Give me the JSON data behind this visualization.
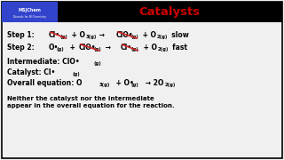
{
  "title": "Catalysts",
  "title_color": "#cc0000",
  "bg_color": "#f0f0f0",
  "border_color": "#000000",
  "logo_text1": "MSJChem",
  "logo_text2": "Tutorials for IB Chemistry",
  "logo_bg": "#3344cc",
  "strike_color": "#cc2222",
  "footer": "Neither the catalyst nor the intermediate\nappear in the overall equation for the reaction.",
  "font_main": 5.5,
  "font_sub": 3.8,
  "font_title": 9.5,
  "font_logo1": 3.2,
  "font_logo2": 2.2,
  "font_footer": 5.0
}
